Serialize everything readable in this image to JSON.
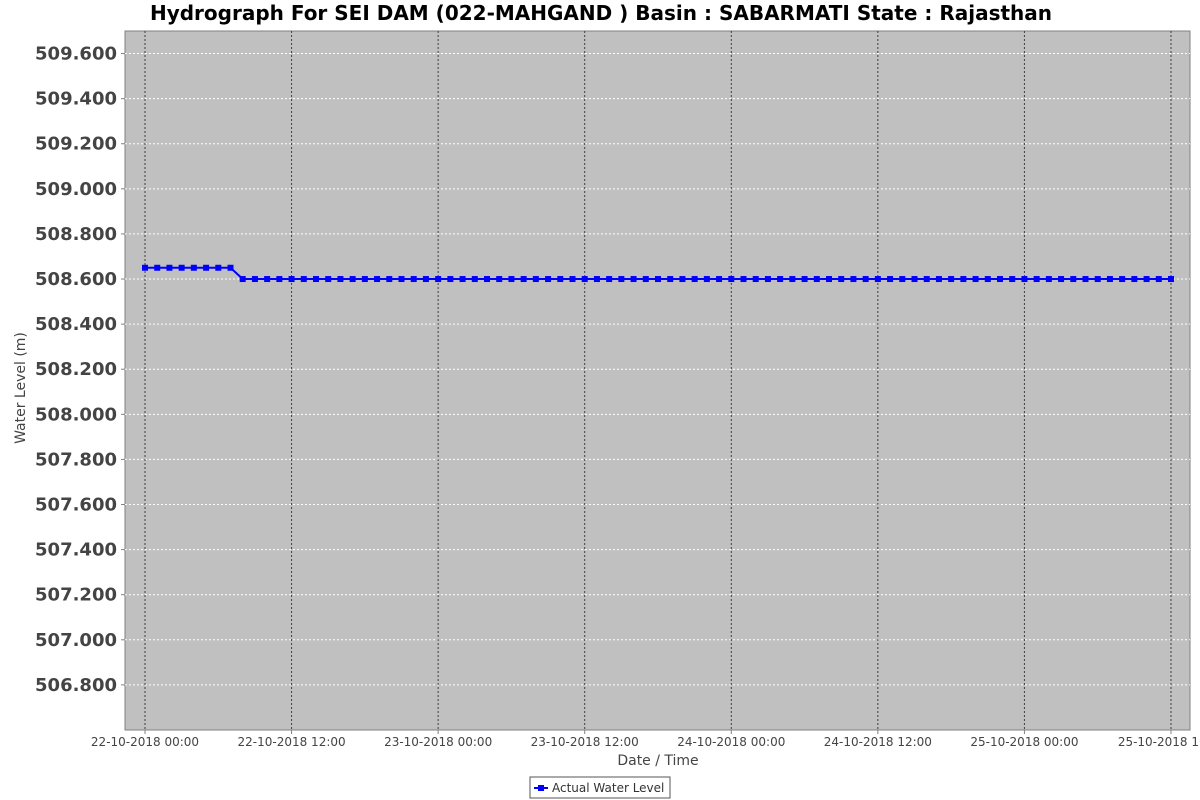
{
  "chart_data": {
    "type": "line",
    "title": "Hydrograph For SEI DAM (022-MAHGAND ) Basin : SABARMATI State : Rajasthan",
    "xlabel": "Date / Time",
    "ylabel": "Water Level (m)",
    "y_ticks": [
      "509.600",
      "509.400",
      "509.200",
      "509.000",
      "508.800",
      "508.600",
      "508.400",
      "508.200",
      "508.000",
      "507.800",
      "507.600",
      "507.400",
      "507.200",
      "507.000",
      "506.800"
    ],
    "x_ticks": [
      "22-10-2018 00:00",
      "22-10-2018 12:00",
      "23-10-2018 00:00",
      "23-10-2018 12:00",
      "24-10-2018 00:00",
      "24-10-2018 12:00",
      "25-10-2018 00:00",
      "25-10-2018 1"
    ],
    "ylim": [
      506.6,
      509.7
    ],
    "x_range": [
      "2018-10-22T00:00",
      "2018-10-25T12:00"
    ],
    "grid": true,
    "legend_position": "bottom-center",
    "colors": {
      "series": "#0000ff",
      "plot_bg": "#c0c0c0"
    },
    "series": [
      {
        "name": "Actual Water Level",
        "x": [
          "2018-10-22T00:00",
          "2018-10-22T07:00",
          "2018-10-22T08:00",
          "2018-10-25T12:00"
        ],
        "y": [
          508.65,
          508.65,
          508.6,
          508.6
        ]
      }
    ]
  }
}
